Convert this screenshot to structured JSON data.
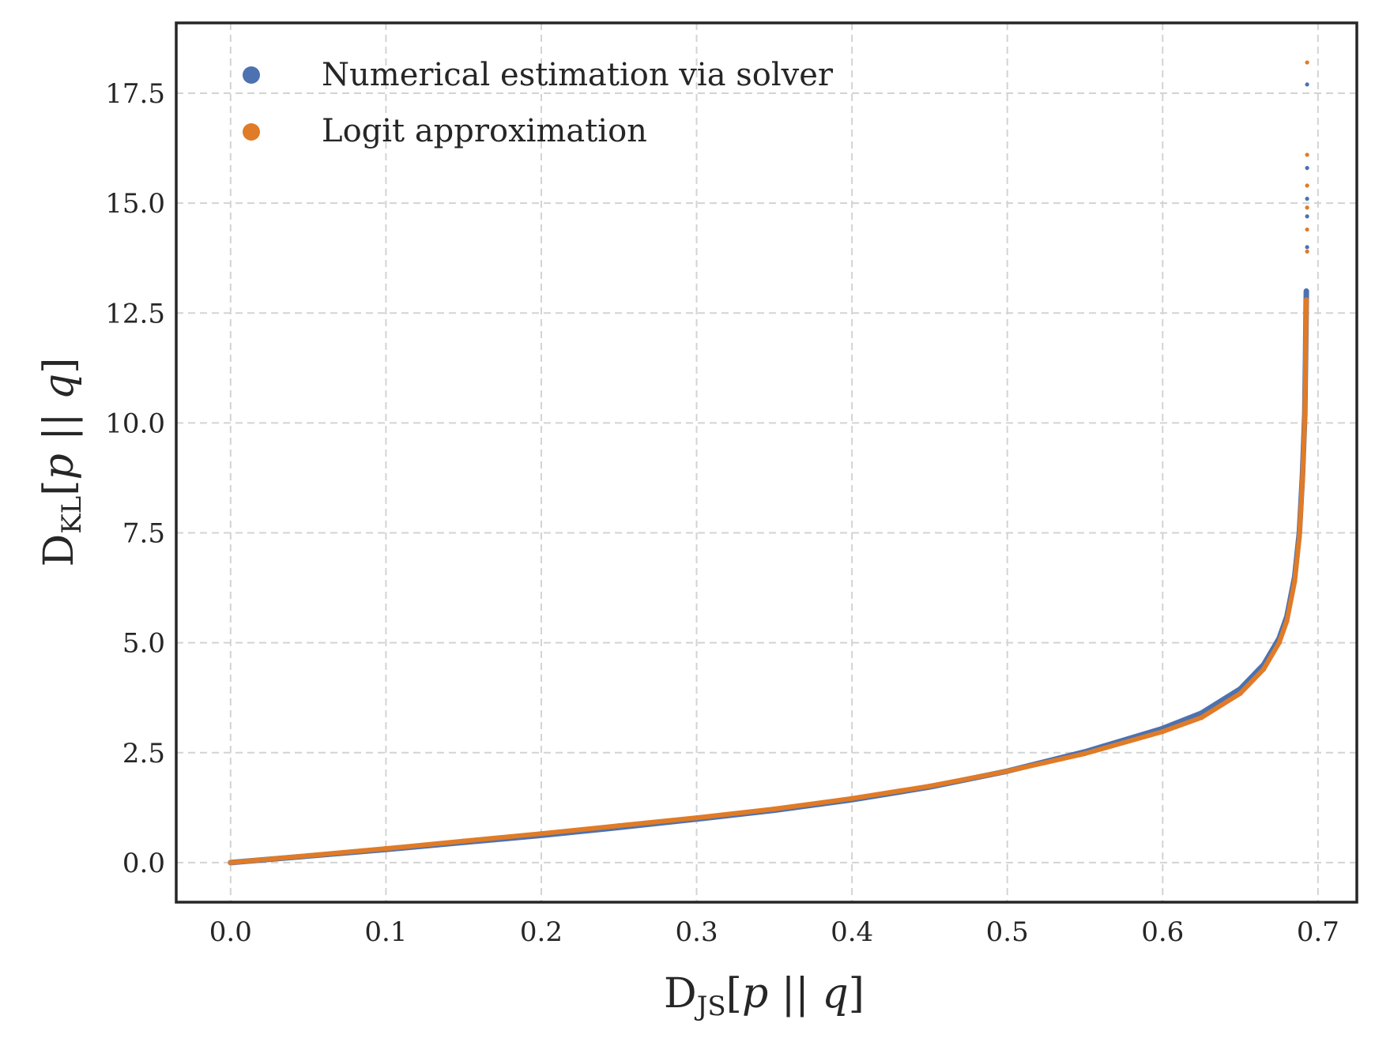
{
  "chart_data": {
    "type": "scatter",
    "xlabel": {
      "main": "D",
      "sub": "JS",
      "rest_open": "[",
      "p": "p",
      "bars": " || ",
      "q": "q",
      "rest_close": "]"
    },
    "ylabel": {
      "main": "D",
      "sub": "KL",
      "rest_open": "[",
      "p": "p",
      "bars": " || ",
      "q": "q",
      "rest_close": "]"
    },
    "xlim": [
      -0.035,
      0.725
    ],
    "ylim": [
      -0.9,
      19.1
    ],
    "xticks": [
      0.0,
      0.1,
      0.2,
      0.3,
      0.4,
      0.5,
      0.6,
      0.7
    ],
    "xtick_labels": [
      "0.0",
      "0.1",
      "0.2",
      "0.3",
      "0.4",
      "0.5",
      "0.6",
      "0.7"
    ],
    "yticks": [
      0.0,
      2.5,
      5.0,
      7.5,
      10.0,
      12.5,
      15.0,
      17.5
    ],
    "ytick_labels": [
      "0.0",
      "2.5",
      "5.0",
      "7.5",
      "10.0",
      "12.5",
      "15.0",
      "17.5"
    ],
    "grid": true,
    "legend_position": "top-left",
    "series": [
      {
        "name": "Numerical estimation via solver",
        "color": "#4c72b0",
        "points": [
          [
            0.0,
            0.0
          ],
          [
            0.05,
            0.15
          ],
          [
            0.1,
            0.3
          ],
          [
            0.15,
            0.46
          ],
          [
            0.2,
            0.62
          ],
          [
            0.25,
            0.8
          ],
          [
            0.3,
            0.99
          ],
          [
            0.35,
            1.19
          ],
          [
            0.4,
            1.43
          ],
          [
            0.45,
            1.72
          ],
          [
            0.5,
            2.08
          ],
          [
            0.55,
            2.52
          ],
          [
            0.6,
            3.05
          ],
          [
            0.625,
            3.4
          ],
          [
            0.65,
            3.95
          ],
          [
            0.665,
            4.5
          ],
          [
            0.675,
            5.1
          ],
          [
            0.68,
            5.6
          ],
          [
            0.685,
            6.5
          ],
          [
            0.688,
            7.5
          ],
          [
            0.69,
            8.8
          ],
          [
            0.6915,
            10.2
          ],
          [
            0.692,
            11.5
          ],
          [
            0.6925,
            13.0
          ],
          [
            0.693,
            14.0
          ],
          [
            0.693,
            14.7
          ],
          [
            0.693,
            15.1
          ],
          [
            0.693,
            15.8
          ],
          [
            0.693,
            17.7
          ]
        ]
      },
      {
        "name": "Logit approximation",
        "color": "#e07b27",
        "points": [
          [
            0.0,
            0.0
          ],
          [
            0.05,
            0.16
          ],
          [
            0.1,
            0.32
          ],
          [
            0.15,
            0.49
          ],
          [
            0.2,
            0.66
          ],
          [
            0.25,
            0.84
          ],
          [
            0.3,
            1.02
          ],
          [
            0.35,
            1.22
          ],
          [
            0.4,
            1.46
          ],
          [
            0.45,
            1.74
          ],
          [
            0.5,
            2.08
          ],
          [
            0.55,
            2.48
          ],
          [
            0.6,
            2.98
          ],
          [
            0.625,
            3.3
          ],
          [
            0.65,
            3.85
          ],
          [
            0.665,
            4.4
          ],
          [
            0.675,
            5.0
          ],
          [
            0.68,
            5.5
          ],
          [
            0.685,
            6.4
          ],
          [
            0.688,
            7.4
          ],
          [
            0.69,
            8.7
          ],
          [
            0.6915,
            10.1
          ],
          [
            0.692,
            11.4
          ],
          [
            0.6925,
            12.8
          ],
          [
            0.693,
            13.9
          ],
          [
            0.693,
            14.4
          ],
          [
            0.693,
            14.9
          ],
          [
            0.693,
            15.4
          ],
          [
            0.693,
            16.1
          ],
          [
            0.693,
            18.2
          ]
        ]
      }
    ]
  }
}
